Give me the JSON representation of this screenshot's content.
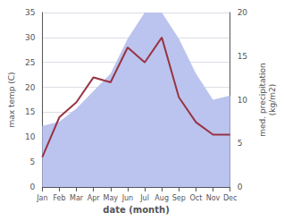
{
  "chart_data": {
    "type": "line",
    "categories": [
      "Jan",
      "Feb",
      "Mar",
      "Apr",
      "May",
      "Jun",
      "Jul",
      "Aug",
      "Sep",
      "Oct",
      "Nov",
      "Dec"
    ],
    "series": [
      {
        "type": "area",
        "color": "#bbc4ee",
        "axis": "y2",
        "values": [
          7,
          7.5,
          9,
          11,
          13,
          17,
          20,
          20,
          17,
          13,
          10,
          10.5
        ]
      },
      {
        "type": "line",
        "color": "#993344",
        "values": [
          6,
          14,
          17,
          22,
          21,
          28,
          25,
          30,
          18,
          13,
          10.5,
          10.5
        ]
      }
    ],
    "xlabel": "date (month)",
    "ylabel": "max temp (C)",
    "y2label": "med. precipitation\n(kg/m2)",
    "ylim": [
      0,
      35
    ],
    "yticks": [
      0,
      5,
      10,
      15,
      20,
      25,
      30,
      35
    ],
    "y2lim": [
      0,
      20
    ],
    "y2ticks": [
      0,
      5,
      10,
      15,
      20
    ],
    "grid": true
  }
}
